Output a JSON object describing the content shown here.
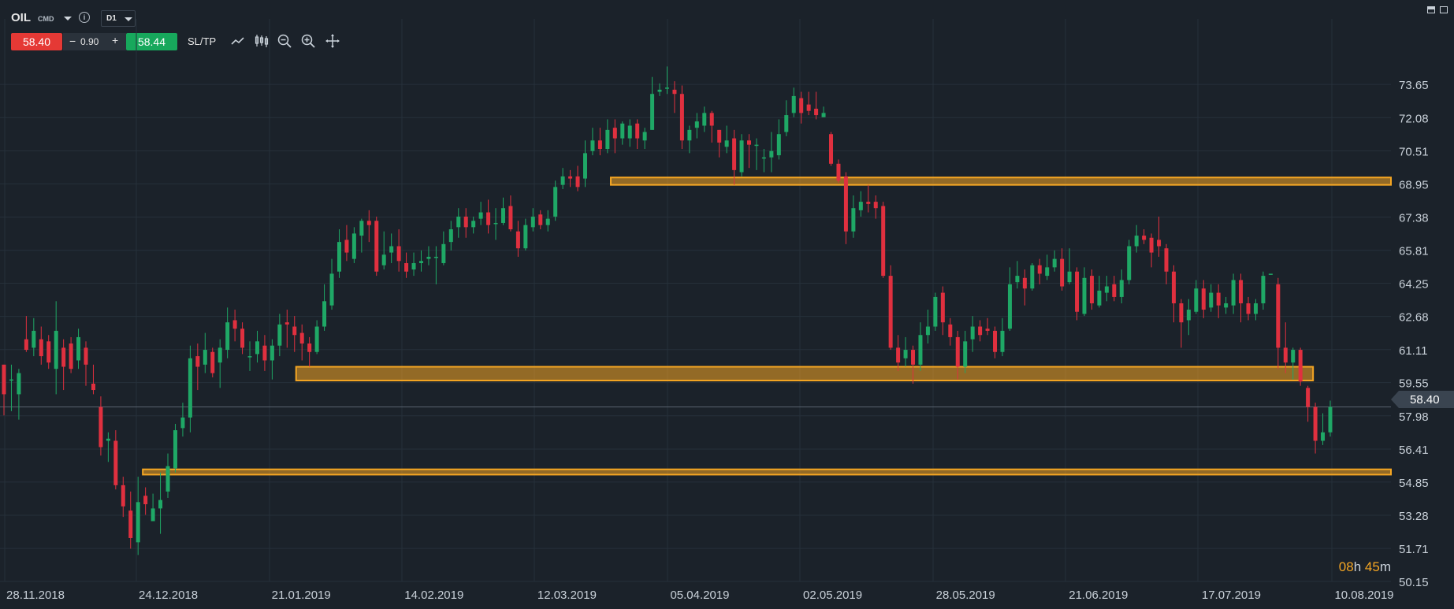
{
  "instrument": {
    "symbol": "OIL",
    "category": "CMD",
    "timeframe": "D1"
  },
  "trade": {
    "sell_price": "58.40",
    "spread": "0.90",
    "buy_price": "58.44",
    "minus": "−",
    "plus": "+",
    "sltp_label": "SL/TP"
  },
  "toolbar_icons": [
    "line-chart-icon",
    "candles-icon",
    "zoom-out-icon",
    "zoom-in-icon",
    "crosshair-icon"
  ],
  "price_axis": {
    "labels": [
      "73.65",
      "72.08",
      "70.51",
      "68.95",
      "67.38",
      "65.81",
      "64.25",
      "62.68",
      "61.11",
      "59.55",
      "57.98",
      "56.41",
      "54.85",
      "53.28",
      "51.71",
      "50.15"
    ]
  },
  "current_price": "58.40",
  "timer": {
    "hours": "08",
    "h_unit": "h",
    "minutes": "45",
    "m_unit": "m"
  },
  "colors": {
    "background": "#1b222a",
    "bull": "#1fa866",
    "bear": "#e0303f",
    "zone": "#f5a623",
    "sell": "#e53935",
    "buy": "#17a85c"
  },
  "chart_data": {
    "type": "candlestick",
    "x_labels": [
      "28.11.2018",
      "24.12.2018",
      "21.01.2019",
      "14.02.2019",
      "12.03.2019",
      "05.04.2019",
      "02.05.2019",
      "28.05.2019",
      "21.06.2019",
      "17.07.2019",
      "10.08.2019"
    ],
    "ylim": [
      50.15,
      75.22
    ],
    "grid": true,
    "current_price": 58.4,
    "zones": [
      {
        "from_date": "2019-04-05",
        "to_date": "2019-08-10",
        "low": 68.9,
        "high": 69.25
      },
      {
        "from_date": "2019-01-18",
        "to_date": "2019-08-05",
        "low": 59.65,
        "high": 60.3
      },
      {
        "from_date": "2018-12-19",
        "to_date": "2019-08-10",
        "low": 55.2,
        "high": 55.45
      }
    ],
    "candles": [
      [
        60.4,
        59.0,
        60.4,
        58.0
      ],
      [
        59.7,
        59.7,
        60.4,
        58.2
      ],
      [
        59.0,
        60.0,
        60.2,
        57.8
      ],
      [
        61.6,
        61.1,
        62.7,
        61.0
      ],
      [
        61.2,
        62.0,
        62.6,
        60.8
      ],
      [
        61.6,
        60.8,
        62.2,
        60.4
      ],
      [
        61.5,
        60.5,
        61.8,
        60.2
      ],
      [
        60.2,
        62.0,
        63.4,
        59.0
      ],
      [
        61.2,
        60.3,
        61.6,
        59.2
      ],
      [
        61.4,
        60.2,
        61.7,
        60.0
      ],
      [
        60.6,
        61.7,
        62.1,
        60.2
      ],
      [
        61.2,
        60.4,
        61.5,
        59.4
      ],
      [
        59.5,
        59.2,
        60.4,
        59.0
      ],
      [
        58.4,
        56.5,
        58.9,
        56.1
      ],
      [
        56.8,
        56.9,
        57.2,
        55.8
      ],
      [
        56.8,
        54.7,
        57.3,
        54.5
      ],
      [
        54.7,
        53.7,
        55.1,
        53.2
      ],
      [
        53.5,
        52.2,
        54.4,
        51.7
      ],
      [
        52.0,
        53.9,
        55.1,
        51.4
      ],
      [
        54.2,
        53.8,
        54.6,
        53.3
      ],
      [
        53.0,
        53.6,
        54.3,
        53.0
      ],
      [
        53.6,
        54.0,
        55.3,
        52.4
      ],
      [
        54.4,
        55.6,
        56.2,
        54.1
      ],
      [
        55.5,
        57.3,
        57.6,
        55.3
      ],
      [
        57.4,
        57.9,
        58.6,
        57.0
      ],
      [
        57.9,
        60.7,
        61.3,
        57.2
      ],
      [
        60.8,
        60.3,
        61.4,
        59.2
      ],
      [
        60.4,
        61.1,
        61.9,
        60.0
      ],
      [
        61.0,
        60.0,
        61.2,
        59.8
      ],
      [
        60.5,
        61.2,
        61.6,
        59.3
      ],
      [
        61.1,
        62.4,
        63.1,
        60.7
      ],
      [
        62.5,
        62.1,
        63.0,
        61.5
      ],
      [
        62.1,
        61.2,
        62.4,
        60.9
      ],
      [
        60.8,
        60.8,
        61.5,
        60.1
      ],
      [
        60.9,
        61.5,
        62.0,
        60.5
      ],
      [
        61.3,
        60.6,
        61.8,
        60.1
      ],
      [
        60.6,
        61.3,
        61.6,
        59.7
      ],
      [
        61.3,
        62.3,
        62.8,
        60.8
      ],
      [
        62.4,
        62.3,
        63.0,
        61.2
      ],
      [
        62.2,
        61.8,
        62.7,
        61.0
      ],
      [
        61.9,
        61.4,
        62.3,
        60.6
      ],
      [
        61.4,
        61.0,
        61.7,
        60.3
      ],
      [
        61.0,
        62.2,
        62.5,
        60.9
      ],
      [
        62.2,
        63.4,
        64.2,
        62.0
      ],
      [
        63.2,
        64.7,
        65.4,
        63.0
      ],
      [
        64.8,
        66.2,
        66.8,
        64.5
      ],
      [
        66.3,
        65.7,
        67.0,
        65.3
      ],
      [
        65.4,
        66.6,
        66.9,
        65.2
      ],
      [
        66.5,
        67.2,
        67.3,
        65.7
      ],
      [
        67.2,
        67.0,
        67.7,
        66.2
      ],
      [
        67.2,
        64.8,
        67.4,
        64.6
      ],
      [
        65.1,
        65.6,
        66.7,
        64.9
      ],
      [
        65.7,
        66.0,
        66.6,
        65.2
      ],
      [
        66.0,
        65.3,
        66.8,
        64.8
      ],
      [
        65.2,
        64.8,
        65.7,
        64.5
      ],
      [
        64.9,
        65.2,
        65.7,
        64.6
      ],
      [
        65.2,
        65.3,
        65.8,
        64.8
      ],
      [
        65.4,
        65.5,
        66.0,
        65.1
      ],
      [
        65.5,
        65.5,
        66.0,
        64.2
      ],
      [
        65.2,
        66.1,
        66.7,
        65.1
      ],
      [
        66.2,
        66.8,
        67.2,
        65.8
      ],
      [
        66.9,
        67.4,
        67.8,
        66.4
      ],
      [
        67.4,
        66.9,
        67.8,
        66.4
      ],
      [
        66.9,
        67.2,
        67.4,
        66.6
      ],
      [
        67.3,
        67.6,
        68.1,
        67.0
      ],
      [
        67.6,
        67.0,
        68.2,
        66.6
      ],
      [
        67.1,
        67.1,
        67.8,
        66.3
      ],
      [
        67.1,
        67.8,
        68.3,
        67.0
      ],
      [
        67.9,
        66.8,
        68.4,
        66.7
      ],
      [
        66.7,
        65.9,
        67.2,
        65.5
      ],
      [
        65.9,
        67.0,
        67.3,
        65.8
      ],
      [
        66.9,
        67.4,
        67.8,
        66.7
      ],
      [
        67.5,
        67.0,
        67.7,
        66.8
      ],
      [
        67.0,
        67.3,
        67.7,
        66.7
      ],
      [
        67.4,
        68.8,
        69.1,
        67.2
      ],
      [
        68.9,
        69.3,
        69.7,
        68.7
      ],
      [
        69.3,
        69.2,
        69.6,
        68.8
      ],
      [
        69.3,
        68.8,
        69.8,
        68.6
      ],
      [
        69.2,
        70.4,
        71.0,
        68.8
      ],
      [
        70.5,
        71.0,
        71.6,
        70.3
      ],
      [
        71.0,
        70.6,
        71.6,
        70.3
      ],
      [
        70.6,
        71.5,
        72.0,
        70.4
      ],
      [
        71.6,
        71.1,
        72.0,
        70.4
      ],
      [
        71.1,
        71.8,
        71.9,
        70.8
      ],
      [
        71.1,
        71.7,
        72.0,
        70.7
      ],
      [
        71.8,
        71.1,
        72.0,
        70.6
      ],
      [
        71.0,
        71.4,
        71.6,
        70.6
      ],
      [
        71.5,
        73.2,
        74.0,
        71.5
      ],
      [
        73.3,
        73.4,
        73.7,
        73.1
      ],
      [
        73.5,
        73.5,
        74.5,
        73.2
      ],
      [
        73.4,
        73.2,
        73.8,
        72.3
      ],
      [
        73.2,
        71.0,
        73.6,
        70.6
      ],
      [
        71.0,
        71.5,
        71.7,
        70.4
      ],
      [
        71.6,
        71.9,
        72.3,
        71.1
      ],
      [
        71.7,
        72.3,
        72.6,
        71.4
      ],
      [
        72.3,
        71.7,
        72.4,
        70.9
      ],
      [
        71.5,
        70.9,
        71.5,
        70.2
      ],
      [
        70.7,
        71.0,
        71.7,
        70.4
      ],
      [
        71.1,
        69.6,
        71.5,
        68.9
      ],
      [
        69.5,
        71.0,
        71.3,
        69.3
      ],
      [
        71.0,
        70.8,
        71.3,
        69.7
      ],
      [
        70.8,
        70.8,
        71.1,
        69.6
      ],
      [
        70.2,
        70.2,
        70.6,
        69.5
      ],
      [
        70.2,
        70.5,
        71.4,
        69.5
      ],
      [
        70.3,
        71.3,
        72.0,
        70.1
      ],
      [
        71.4,
        72.2,
        72.9,
        71.2
      ],
      [
        72.3,
        73.1,
        73.5,
        72.1
      ],
      [
        73.0,
        72.3,
        73.3,
        71.8
      ],
      [
        72.7,
        72.4,
        73.3,
        72.2
      ],
      [
        72.5,
        72.2,
        73.3,
        72.0
      ],
      [
        72.1,
        72.3,
        72.6,
        72.1
      ],
      [
        71.3,
        69.9,
        71.4,
        69.8
      ],
      [
        69.9,
        69.1,
        70.1,
        69.0
      ],
      [
        69.3,
        66.7,
        69.5,
        66.1
      ],
      [
        66.7,
        67.8,
        68.4,
        66.4
      ],
      [
        67.7,
        68.1,
        68.6,
        67.4
      ],
      [
        68.1,
        68.0,
        68.9,
        67.6
      ],
      [
        68.1,
        67.8,
        68.4,
        67.3
      ],
      [
        67.9,
        64.6,
        68.1,
        64.5
      ],
      [
        64.6,
        61.2,
        65.1,
        61.1
      ],
      [
        61.2,
        60.5,
        61.8,
        60.1
      ],
      [
        60.7,
        61.1,
        61.7,
        60.3
      ],
      [
        61.1,
        60.4,
        61.3,
        59.5
      ],
      [
        60.4,
        61.8,
        62.4,
        60.1
      ],
      [
        61.8,
        62.2,
        63.0,
        61.4
      ],
      [
        62.2,
        63.6,
        63.8,
        62.0
      ],
      [
        63.8,
        62.4,
        64.1,
        61.8
      ],
      [
        62.3,
        61.7,
        62.6,
        61.3
      ],
      [
        61.7,
        60.3,
        62.0,
        59.7
      ],
      [
        60.3,
        61.5,
        62.0,
        60.0
      ],
      [
        61.6,
        62.2,
        62.7,
        61.0
      ],
      [
        62.2,
        61.8,
        62.5,
        61.5
      ],
      [
        62.1,
        62.0,
        62.6,
        61.8
      ],
      [
        62.0,
        61.0,
        62.2,
        60.7
      ],
      [
        61.0,
        62.0,
        62.6,
        60.8
      ],
      [
        62.1,
        64.2,
        65.0,
        62.0
      ],
      [
        64.3,
        64.6,
        65.3,
        64.0
      ],
      [
        64.5,
        64.0,
        64.9,
        63.2
      ],
      [
        64.0,
        65.1,
        65.2,
        63.9
      ],
      [
        65.1,
        64.7,
        65.4,
        64.2
      ],
      [
        64.6,
        65.0,
        65.6,
        64.4
      ],
      [
        65.0,
        65.4,
        65.8,
        64.8
      ],
      [
        65.4,
        64.1,
        65.9,
        63.9
      ],
      [
        64.3,
        64.8,
        65.9,
        64.2
      ],
      [
        64.8,
        62.9,
        65.0,
        62.5
      ],
      [
        62.8,
        64.5,
        65.0,
        62.7
      ],
      [
        64.6,
        63.3,
        64.9,
        63.0
      ],
      [
        63.2,
        63.9,
        64.6,
        63.1
      ],
      [
        63.8,
        64.1,
        64.6,
        63.4
      ],
      [
        64.2,
        63.6,
        64.6,
        63.4
      ],
      [
        63.6,
        64.4,
        64.9,
        63.3
      ],
      [
        64.4,
        66.0,
        66.3,
        64.2
      ],
      [
        66.0,
        66.5,
        67.0,
        65.7
      ],
      [
        66.5,
        66.3,
        66.8,
        66.1
      ],
      [
        66.4,
        65.7,
        66.6,
        65.0
      ],
      [
        66.3,
        66.0,
        67.4,
        65.5
      ],
      [
        65.9,
        64.8,
        66.1,
        64.2
      ],
      [
        64.8,
        63.3,
        65.1,
        62.4
      ],
      [
        63.3,
        62.4,
        63.5,
        61.2
      ],
      [
        62.5,
        63.0,
        63.5,
        61.8
      ],
      [
        62.9,
        64.0,
        64.4,
        62.8
      ],
      [
        64.0,
        63.0,
        64.4,
        62.6
      ],
      [
        63.1,
        63.8,
        64.2,
        62.9
      ],
      [
        63.8,
        63.2,
        64.2,
        62.6
      ],
      [
        63.1,
        63.3,
        63.6,
        62.8
      ],
      [
        63.2,
        64.4,
        64.7,
        62.8
      ],
      [
        64.4,
        63.3,
        64.7,
        62.4
      ],
      [
        63.3,
        62.8,
        63.6,
        62.5
      ],
      [
        62.8,
        63.3,
        63.5,
        62.5
      ],
      [
        63.3,
        64.6,
        64.8,
        63.0
      ],
      [
        64.7,
        64.7,
        64.7,
        64.7
      ],
      [
        64.2,
        61.2,
        64.5,
        60.2
      ],
      [
        61.2,
        60.5,
        62.4,
        60.0
      ],
      [
        60.5,
        61.1,
        61.2,
        59.7
      ],
      [
        61.1,
        59.6,
        61.2,
        59.4
      ],
      [
        59.3,
        58.4,
        59.4,
        57.7
      ],
      [
        58.4,
        56.8,
        58.6,
        56.2
      ],
      [
        56.8,
        57.2,
        58.1,
        56.6
      ],
      [
        57.2,
        58.4,
        58.7,
        57.0
      ]
    ],
    "candle_dates_note_removed": true
  }
}
